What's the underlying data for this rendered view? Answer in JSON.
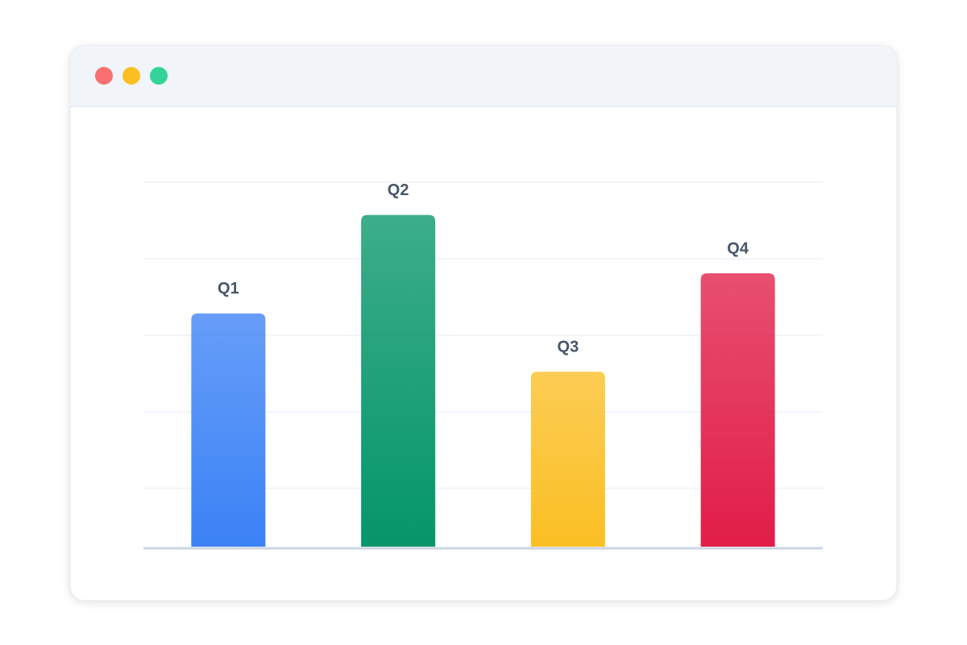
{
  "chart_data": {
    "type": "bar",
    "categories": [
      "Q1",
      "Q2",
      "Q3",
      "Q4"
    ],
    "values": [
      64,
      91,
      48,
      75
    ],
    "colors": [
      "#3b82f6",
      "#059669",
      "#fbbf24",
      "#e11d48"
    ],
    "ylim": [
      0,
      100
    ],
    "yticks": [
      16,
      37,
      58,
      79,
      100
    ],
    "grid": true
  }
}
